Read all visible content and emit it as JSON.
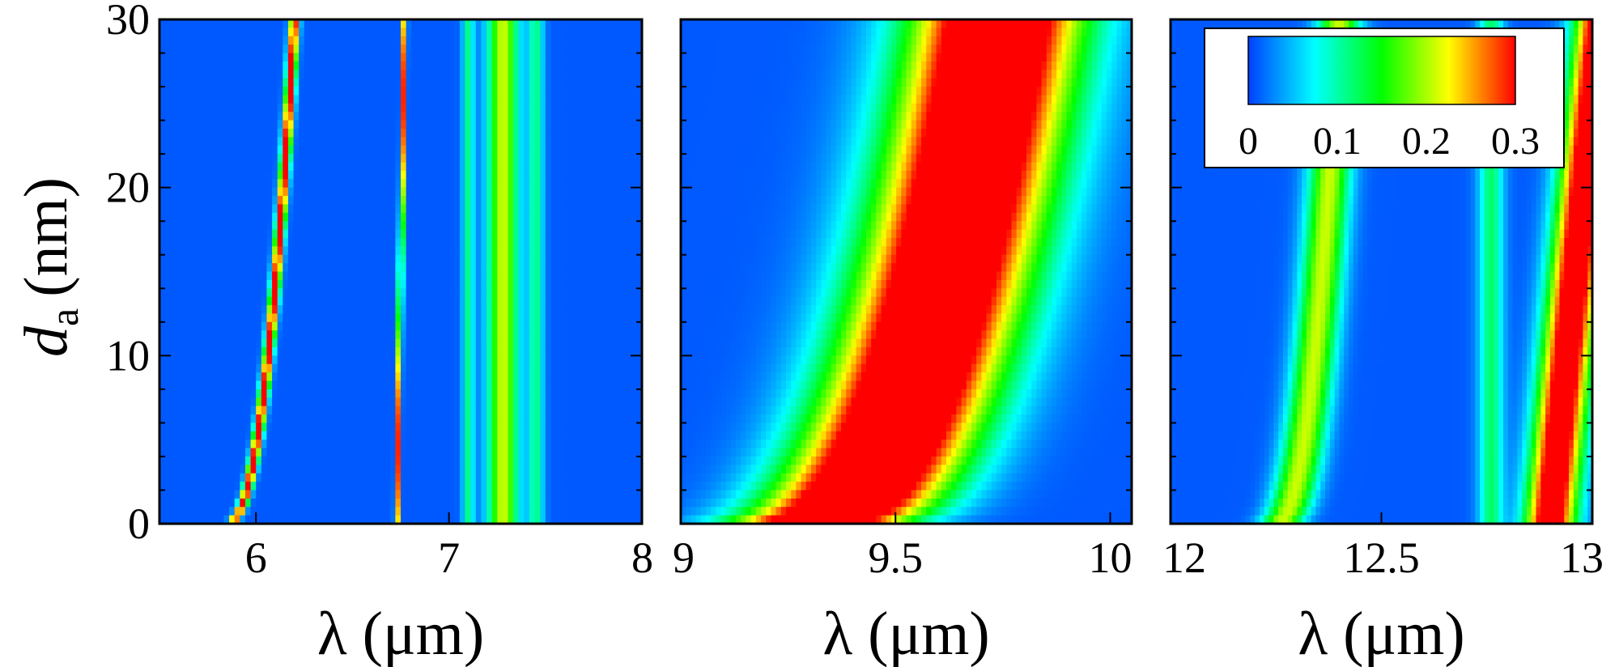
{
  "chart_data": {
    "type": "heatmap",
    "ylabel_main": "d",
    "ylabel_sub": "a",
    "ylabel_unit": "(nm)",
    "ylim": [
      0,
      30
    ],
    "y_ticks": [
      "0",
      "10",
      "20",
      "30"
    ],
    "colorbar": {
      "ticks": [
        "0",
        "0.1",
        "0.2",
        "0.3"
      ],
      "range": [
        0,
        0.3
      ],
      "colors": [
        "#0040ff",
        "#00ffff",
        "#00ff00",
        "#ffff00",
        "#ff0000"
      ]
    },
    "panels": [
      {
        "xlabel": "λ (μm)",
        "xlim": [
          5.5,
          8
        ],
        "x_ticks": [
          {
            "v": 6,
            "label": "6"
          },
          {
            "v": 7,
            "label": "7"
          },
          {
            "v": 8,
            "label": "8"
          }
        ],
        "ridges": [
          {
            "x_at_0": 5.85,
            "x_at_30": 6.2,
            "width": 0.025,
            "peak": 0.32,
            "curve": "hyperbolic"
          },
          {
            "x_at_0": 6.73,
            "x_at_30": 6.77,
            "width": 0.012,
            "peak": 0.28,
            "curve": "linear"
          },
          {
            "x_at_0": 7.1,
            "x_at_30": 7.1,
            "width": 0.03,
            "peak": 0.1,
            "curve": "linear"
          },
          {
            "x_at_0": 7.28,
            "x_at_30": 7.28,
            "width": 0.08,
            "peak": 0.2,
            "curve": "linear"
          },
          {
            "x_at_0": 7.45,
            "x_at_30": 7.45,
            "width": 0.04,
            "peak": 0.1,
            "curve": "linear"
          }
        ]
      },
      {
        "xlabel": "λ (μm)",
        "xlim": [
          9,
          10.05
        ],
        "x_ticks": [
          {
            "v": 9,
            "label": "9"
          },
          {
            "v": 9.5,
            "label": "9.5"
          },
          {
            "v": 10,
            "label": "10"
          }
        ],
        "ridges": [
          {
            "x_at_0": 9.28,
            "x_at_30": 9.74,
            "width": 0.2,
            "peak": 0.42,
            "curve": "hyperbolic"
          }
        ]
      },
      {
        "xlabel": "λ (μm)",
        "xlim": [
          12,
          13
        ],
        "x_ticks": [
          {
            "v": 12,
            "label": "12"
          },
          {
            "v": 12.5,
            "label": "12.5"
          },
          {
            "v": 13,
            "label": "13"
          }
        ],
        "ridges": [
          {
            "x_at_0": 12.25,
            "x_at_30": 12.4,
            "width": 0.05,
            "peak": 0.2,
            "curve": "hyperbolic"
          },
          {
            "x_at_0": 12.76,
            "x_at_30": 12.76,
            "width": 0.03,
            "peak": 0.11,
            "curve": "linear"
          },
          {
            "x_at_0": 12.9,
            "x_at_30": 13.02,
            "width": 0.06,
            "peak": 0.36,
            "curve": "linear"
          }
        ]
      }
    ]
  }
}
